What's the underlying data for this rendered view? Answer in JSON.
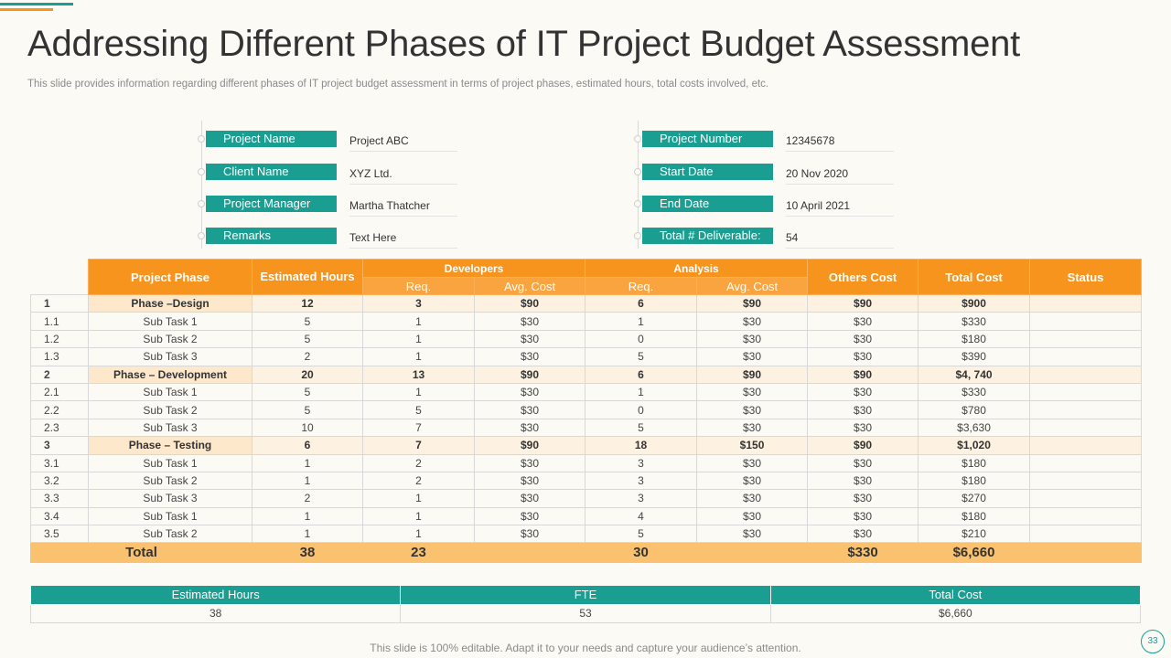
{
  "title": "Addressing Different Phases of IT Project Budget Assessment",
  "subtitle": "This slide provides information regarding different phases of IT project budget assessment in terms of project phases, estimated hours, total costs involved, etc.",
  "info_left": [
    {
      "label": "Project Name",
      "value": "Project ABC"
    },
    {
      "label": "Client Name",
      "value": "XYZ  Ltd."
    },
    {
      "label": "Project Manager",
      "value": "Martha Thatcher"
    },
    {
      "label": "Remarks",
      "value": "Text Here"
    }
  ],
  "info_right": [
    {
      "label": "Project Number",
      "value": "12345678"
    },
    {
      "label": "Start Date",
      "value": "20 Nov 2020"
    },
    {
      "label": "End Date",
      "value": "10 April 2021"
    },
    {
      "label": "Total # Deliverable:",
      "value": "54"
    }
  ],
  "table": {
    "headers": {
      "phase": "Project Phase",
      "hours": "Estimated Hours",
      "developers": "Developers",
      "analysis": "Analysis",
      "others": "Others Cost",
      "total": "Total Cost",
      "status": "Status",
      "req": "Req.",
      "avg": "Avg. Cost"
    },
    "rows": [
      {
        "kind": "phase",
        "idx": "1",
        "name": "Phase –Design",
        "hours": "12",
        "dev_req": "3",
        "dev_cost": "$90",
        "an_req": "6",
        "an_cost": "$90",
        "others": "$90",
        "total": "$900",
        "status": ""
      },
      {
        "kind": "sub",
        "idx": "1.1",
        "name": "Sub Task 1",
        "hours": "5",
        "dev_req": "1",
        "dev_cost": "$30",
        "an_req": "1",
        "an_cost": "$30",
        "others": "$30",
        "total": "$330",
        "status": ""
      },
      {
        "kind": "sub",
        "idx": "1.2",
        "name": "Sub Task 2",
        "hours": "5",
        "dev_req": "1",
        "dev_cost": "$30",
        "an_req": "0",
        "an_cost": "$30",
        "others": "$30",
        "total": "$180",
        "status": ""
      },
      {
        "kind": "sub",
        "idx": "1.3",
        "name": "Sub Task 3",
        "hours": "2",
        "dev_req": "1",
        "dev_cost": "$30",
        "an_req": "5",
        "an_cost": "$30",
        "others": "$30",
        "total": "$390",
        "status": ""
      },
      {
        "kind": "phase",
        "idx": "2",
        "name": "Phase – Development",
        "hours": "20",
        "dev_req": "13",
        "dev_cost": "$90",
        "an_req": "6",
        "an_cost": "$90",
        "others": "$90",
        "total": "$4, 740",
        "status": ""
      },
      {
        "kind": "sub",
        "idx": "2.1",
        "name": "Sub Task 1",
        "hours": "5",
        "dev_req": "1",
        "dev_cost": "$30",
        "an_req": "1",
        "an_cost": "$30",
        "others": "$30",
        "total": "$330",
        "status": ""
      },
      {
        "kind": "sub",
        "idx": "2.2",
        "name": "Sub Task 2",
        "hours": "5",
        "dev_req": "5",
        "dev_cost": "$30",
        "an_req": "0",
        "an_cost": "$30",
        "others": "$30",
        "total": "$780",
        "status": ""
      },
      {
        "kind": "sub",
        "idx": "2.3",
        "name": "Sub Task 3",
        "hours": "10",
        "dev_req": "7",
        "dev_cost": "$30",
        "an_req": "5",
        "an_cost": "$30",
        "others": "$30",
        "total": "$3,630",
        "status": ""
      },
      {
        "kind": "phase",
        "idx": "3",
        "name": "Phase – Testing",
        "hours": "6",
        "dev_req": "7",
        "dev_cost": "$90",
        "an_req": "18",
        "an_cost": "$150",
        "others": "$90",
        "total": "$1,020",
        "status": ""
      },
      {
        "kind": "sub",
        "idx": "3.1",
        "name": "Sub Task 1",
        "hours": "1",
        "dev_req": "2",
        "dev_cost": "$30",
        "an_req": "3",
        "an_cost": "$30",
        "others": "$30",
        "total": "$180",
        "status": ""
      },
      {
        "kind": "sub",
        "idx": "3.2",
        "name": "Sub Task 2",
        "hours": "1",
        "dev_req": "2",
        "dev_cost": "$30",
        "an_req": "3",
        "an_cost": "$30",
        "others": "$30",
        "total": "$180",
        "status": ""
      },
      {
        "kind": "sub",
        "idx": "3.3",
        "name": "Sub Task 3",
        "hours": "2",
        "dev_req": "1",
        "dev_cost": "$30",
        "an_req": "3",
        "an_cost": "$30",
        "others": "$30",
        "total": "$270",
        "status": ""
      },
      {
        "kind": "sub",
        "idx": "3.4",
        "name": "Sub Task 1",
        "hours": "1",
        "dev_req": "1",
        "dev_cost": "$30",
        "an_req": "4",
        "an_cost": "$30",
        "others": "$30",
        "total": "$180",
        "status": ""
      },
      {
        "kind": "sub",
        "idx": "3.5",
        "name": "Sub Task 2",
        "hours": "1",
        "dev_req": "1",
        "dev_cost": "$30",
        "an_req": "5",
        "an_cost": "$30",
        "others": "$30",
        "total": "$210",
        "status": ""
      }
    ],
    "total_row": {
      "label": "Total",
      "hours": "38",
      "dev_req": "23",
      "dev_cost": "",
      "an_req": "30",
      "an_cost": "",
      "others": "$330",
      "total": "$6,660",
      "status": ""
    }
  },
  "summary": {
    "headers": [
      "Estimated Hours",
      "FTE",
      "Total Cost"
    ],
    "values": [
      "38",
      "53",
      "$6,660"
    ]
  },
  "footer": "This slide is 100% editable. Adapt it to your needs and capture your audience’s attention.",
  "page_number": "33",
  "colors": {
    "teal": "#1a9e92",
    "orange": "#f7941d",
    "total_row": "#fac26e"
  }
}
